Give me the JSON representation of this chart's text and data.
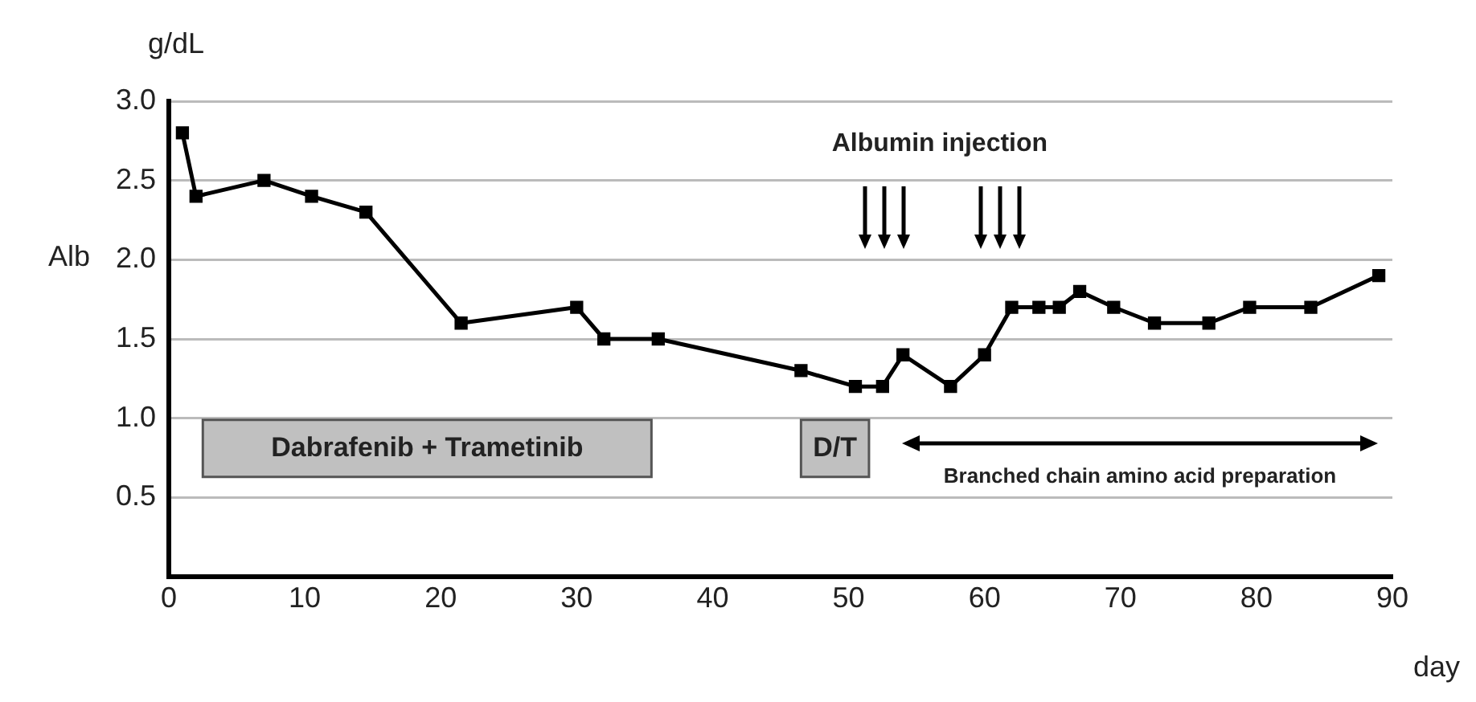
{
  "chart_data": {
    "type": "line",
    "ylabel": "Alb",
    "xlabel": "day",
    "annotations": [
      "g/dL",
      "Albumin injection",
      "Branched chain amino acid preparation"
    ],
    "x": [
      1,
      2,
      7,
      10.5,
      14.5,
      21.5,
      30,
      32,
      36,
      46.5,
      50.5,
      52.5,
      54,
      57.5,
      60,
      62,
      64,
      65.5,
      67,
      69.5,
      72.5,
      76.5,
      79.5,
      84,
      89
    ],
    "series": [
      {
        "color": "#000000",
        "values": [
          2.8,
          2.4,
          2.5,
          2.4,
          2.3,
          1.6,
          1.7,
          1.5,
          1.5,
          1.3,
          1.2,
          1.2,
          1.4,
          1.2,
          1.4,
          1.7,
          1.7,
          1.7,
          1.8,
          1.7,
          1.6,
          1.6,
          1.7,
          1.7,
          1.9
        ]
      }
    ],
    "xlim": [
      0,
      90
    ],
    "xticks": [
      0,
      10,
      20,
      30,
      40,
      50,
      60,
      70,
      80,
      90
    ],
    "ylim": [
      0,
      3
    ],
    "yticks": [
      {
        "value": 0,
        "label": null
      },
      0.5,
      {
        "value": 1,
        "label": "1.0"
      },
      1.5,
      {
        "value": 2,
        "label": "2.0"
      },
      2.5,
      {
        "value": 3,
        "label": "3.0"
      }
    ],
    "bands": [
      {
        "axis": "x",
        "from": 2.5,
        "to": 35.5,
        "label": "Dabrafenib + Trametinib",
        "color": "#c0c0c0"
      },
      {
        "axis": "x",
        "from": 46.5,
        "to": 51.5,
        "label": "D/T",
        "color": "#c0c0c0"
      }
    ],
    "grid": "y",
    "legend": false,
    "marker": "square",
    "line_style": "solid"
  }
}
